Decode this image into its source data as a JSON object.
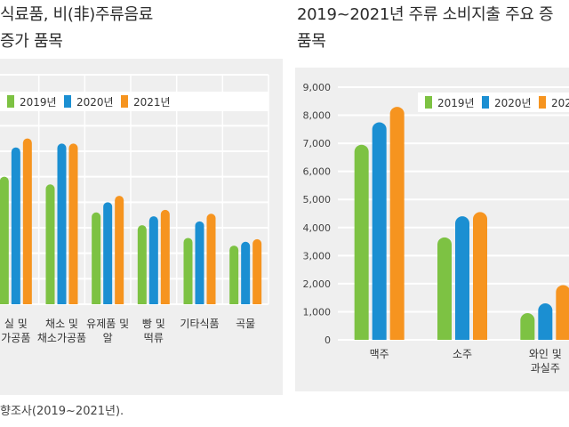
{
  "left": {
    "title_line1": "식료품, 비(非)주류음료",
    "title_line2": "증가 품목"
  },
  "right": {
    "title_line1": "2019~2021년 주류 소비지출 주요 증",
    "title_line2": "품목"
  },
  "source": "향조사(2019~2021년).",
  "colors": {
    "2019": "#7dc243",
    "2020": "#1b8fd2",
    "2021": "#f6941f",
    "grid": "#ffffff",
    "panel": "#efefef"
  },
  "chart_data": [
    {
      "type": "bar",
      "title": "식료품, 비(非)주류음료 증가 품목",
      "categories": [
        [
          "실 및",
          "가공품"
        ],
        [
          "채소 및",
          "채소가공품"
        ],
        [
          "유제품 및",
          "알"
        ],
        [
          "빵 및",
          "떡류"
        ],
        [
          "기타식품"
        ],
        [
          "곡물"
        ]
      ],
      "series": [
        {
          "name": "2019년",
          "values": [
            5000,
            4700,
            3600,
            3100,
            2600,
            2300
          ]
        },
        {
          "name": "2020년",
          "values": [
            6150,
            6300,
            4000,
            3450,
            3250,
            2450
          ]
        },
        {
          "name": "2021년",
          "values": [
            6500,
            6300,
            4250,
            3700,
            3550,
            2550
          ]
        }
      ],
      "ylim": [
        0,
        9000
      ],
      "grid": true,
      "legend": "top-left"
    },
    {
      "type": "bar",
      "title": "2019~2021년 주류 소비지출 주요 증 품목",
      "categories": [
        [
          "맥주"
        ],
        [
          "소주"
        ],
        [
          "와인 및",
          "과실주"
        ]
      ],
      "series": [
        {
          "name": "2019년",
          "values": [
            6950,
            3650,
            950
          ]
        },
        {
          "name": "2020년",
          "values": [
            7750,
            4400,
            1300
          ]
        },
        {
          "name": "2021년",
          "values": [
            8300,
            4550,
            1950
          ]
        }
      ],
      "ylim": [
        0,
        9000
      ],
      "yticks": [
        "0",
        "1,000",
        "2,000",
        "3,000",
        "4,000",
        "5,000",
        "6,000",
        "7,000",
        "8,000",
        "9,000"
      ],
      "grid": true,
      "legend": "top-right"
    }
  ]
}
